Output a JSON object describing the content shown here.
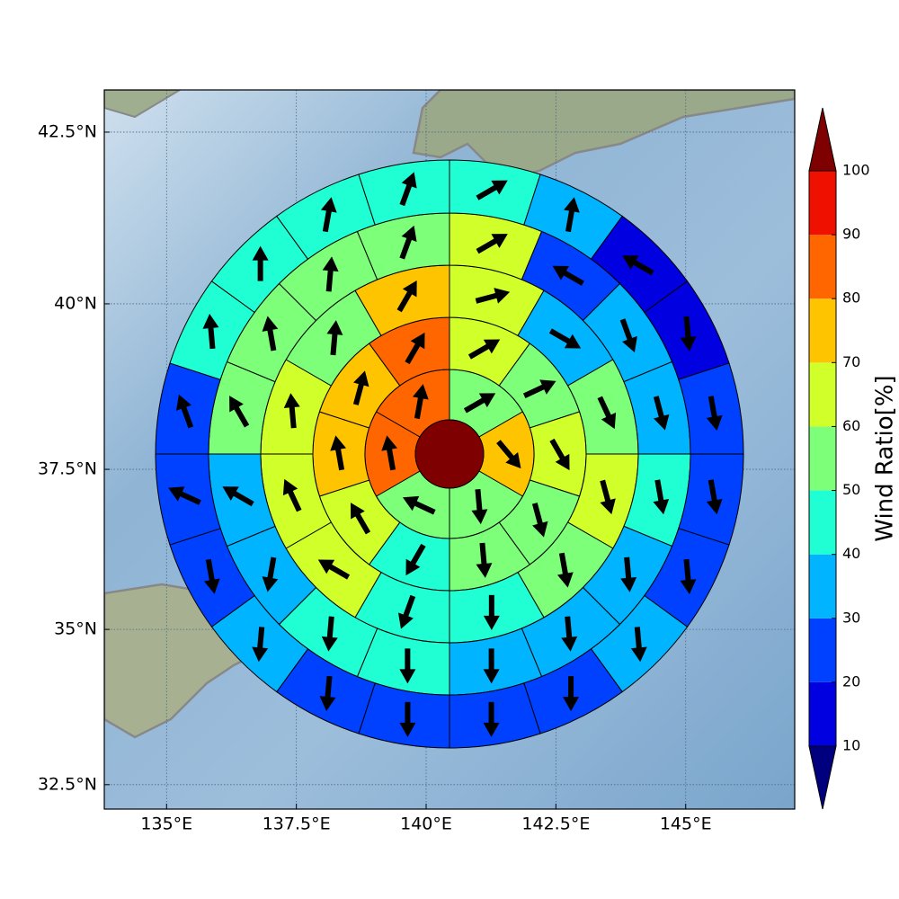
{
  "chart_data": {
    "type": "polar-grid-map",
    "xlim": [
      133.8,
      147.1
    ],
    "ylim": [
      32.1,
      43.1
    ],
    "xticks": [
      {
        "value": 135,
        "label": "135°E"
      },
      {
        "value": 137.5,
        "label": "137.5°E"
      },
      {
        "value": 140,
        "label": "140°E"
      },
      {
        "value": 142.5,
        "label": "142.5°E"
      },
      {
        "value": 145,
        "label": "145°E"
      }
    ],
    "yticks": [
      {
        "value": 32.5,
        "label": "32.5°N"
      },
      {
        "value": 35,
        "label": "35°N"
      },
      {
        "value": 37.5,
        "label": "37.5°N"
      },
      {
        "value": 40,
        "label": "40°N"
      },
      {
        "value": 42.5,
        "label": "42.5°N"
      }
    ],
    "grid": true,
    "center_value": 105,
    "rings": [
      {
        "values": [
          55,
          75,
          55,
          55,
          85,
          85
        ],
        "directions": [
          60,
          140,
          175,
          295,
          350,
          10
        ]
      },
      {
        "values": [
          65,
          55,
          65,
          55,
          55,
          45,
          65,
          75,
          75,
          85
        ],
        "directions": [
          60,
          65,
          150,
          165,
          175,
          210,
          330,
          350,
          15,
          30
        ]
      },
      {
        "values": [
          65,
          35,
          55,
          65,
          55,
          45,
          45,
          65,
          65,
          65,
          55,
          75
        ],
        "directions": [
          75,
          120,
          155,
          165,
          170,
          180,
          200,
          300,
          335,
          355,
          5,
          30
        ]
      },
      {
        "values": [
          65,
          25,
          35,
          35,
          45,
          35,
          35,
          35,
          45,
          45,
          35,
          35,
          55,
          55,
          55,
          55
        ],
        "directions": [
          60,
          300,
          160,
          165,
          170,
          175,
          175,
          180,
          180,
          185,
          190,
          300,
          330,
          350,
          5,
          20
        ]
      },
      {
        "values": [
          45,
          35,
          15,
          15,
          25,
          25,
          25,
          35,
          25,
          25,
          25,
          25,
          35,
          25,
          25,
          25,
          45,
          45,
          45,
          45
        ],
        "directions": [
          60,
          10,
          300,
          175,
          170,
          170,
          175,
          175,
          180,
          180,
          180,
          185,
          185,
          170,
          295,
          340,
          355,
          0,
          10,
          20
        ]
      }
    ],
    "colorbar": {
      "label": "Wind Ratio[%]",
      "ticks": [
        10,
        20,
        30,
        40,
        50,
        60,
        70,
        80,
        90,
        100
      ],
      "colors": [
        "#0000e0",
        "#0040ff",
        "#00b4ff",
        "#20ffd4",
        "#7dff7a",
        "#d0ff2a",
        "#ffc400",
        "#ff6600",
        "#f01000"
      ],
      "under_color": "#00007f",
      "over_color": "#7f0000"
    }
  }
}
